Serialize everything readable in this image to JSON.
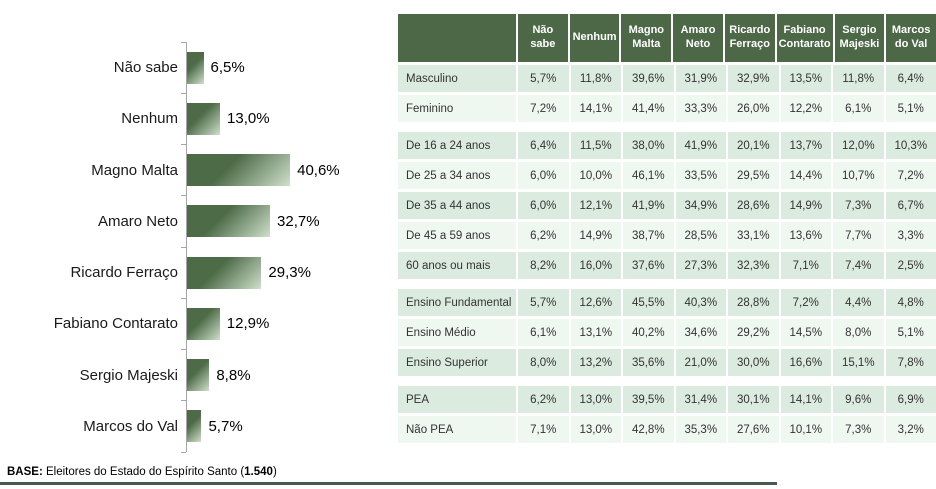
{
  "chart_data": [
    {
      "type": "bar",
      "orientation": "horizontal",
      "title": "",
      "xlabel": "",
      "ylabel": "",
      "grid": false,
      "legend": false,
      "categories": [
        "Não sabe",
        "Nenhum",
        "Magno Malta",
        "Amaro Neto",
        "Ricardo Ferraço",
        "Fabiano Contarato",
        "Sergio Majeski",
        "Marcos do Val"
      ],
      "values": [
        6.5,
        13.0,
        40.6,
        32.7,
        29.3,
        12.9,
        8.8,
        5.7
      ],
      "value_labels": [
        "6,5%",
        "13,0%",
        "40,6%",
        "32,7%",
        "29,3%",
        "12,9%",
        "8,8%",
        "5,7%"
      ],
      "bar_color": "#4d6b47",
      "bar_gradient_end": "#cfe0cc",
      "axis_color": "#a6a6a6"
    },
    {
      "type": "table",
      "header_bg": "#4c6847",
      "row_bg_alt": [
        "#dcebe0",
        "#eff7f1"
      ],
      "columns": [
        "Não sabe",
        "Nenhum",
        "Magno Malta",
        "Amaro Neto",
        "Ricardo Ferraço",
        "Fabiano Contarato",
        "Sergio Majeski",
        "Marcos do Val"
      ],
      "row_groups": [
        {
          "rows": [
            {
              "label": "Masculino",
              "values": [
                "5,7%",
                "11,8%",
                "39,6%",
                "31,9%",
                "32,9%",
                "13,5%",
                "11,8%",
                "6,4%"
              ]
            },
            {
              "label": "Feminino",
              "values": [
                "7,2%",
                "14,1%",
                "41,4%",
                "33,3%",
                "26,0%",
                "12,2%",
                "6,1%",
                "5,1%"
              ]
            }
          ]
        },
        {
          "rows": [
            {
              "label": "De 16 a 24 anos",
              "values": [
                "6,4%",
                "11,5%",
                "38,0%",
                "41,9%",
                "20,1%",
                "13,7%",
                "12,0%",
                "10,3%"
              ]
            },
            {
              "label": "De 25 a 34 anos",
              "values": [
                "6,0%",
                "10,0%",
                "46,1%",
                "33,5%",
                "29,5%",
                "14,4%",
                "10,7%",
                "7,2%"
              ]
            },
            {
              "label": "De 35 a 44 anos",
              "values": [
                "6,0%",
                "12,1%",
                "41,9%",
                "34,9%",
                "28,6%",
                "14,9%",
                "7,3%",
                "6,7%"
              ]
            },
            {
              "label": "De 45 a 59 anos",
              "values": [
                "6,2%",
                "14,9%",
                "38,7%",
                "28,5%",
                "33,1%",
                "13,6%",
                "7,7%",
                "3,3%"
              ]
            },
            {
              "label": "60 anos ou mais",
              "values": [
                "8,2%",
                "16,0%",
                "37,6%",
                "27,3%",
                "32,3%",
                "7,1%",
                "7,4%",
                "2,5%"
              ]
            }
          ]
        },
        {
          "rows": [
            {
              "label": "Ensino Fundamental",
              "values": [
                "5,7%",
                "12,6%",
                "45,5%",
                "40,3%",
                "28,8%",
                "7,2%",
                "4,4%",
                "4,8%"
              ]
            },
            {
              "label": "Ensino Médio",
              "values": [
                "6,1%",
                "13,1%",
                "40,2%",
                "34,6%",
                "29,2%",
                "14,5%",
                "8,0%",
                "5,1%"
              ]
            },
            {
              "label": "Ensino Superior",
              "values": [
                "8,0%",
                "13,2%",
                "35,6%",
                "21,0%",
                "30,0%",
                "16,6%",
                "15,1%",
                "7,8%"
              ]
            }
          ]
        },
        {
          "rows": [
            {
              "label": "PEA",
              "values": [
                "6,2%",
                "13,0%",
                "39,5%",
                "31,4%",
                "30,1%",
                "14,1%",
                "9,6%",
                "6,9%"
              ]
            },
            {
              "label": "Não PEA",
              "values": [
                "7,1%",
                "13,0%",
                "42,8%",
                "35,3%",
                "27,6%",
                "10,1%",
                "7,3%",
                "3,2%"
              ]
            }
          ]
        }
      ]
    }
  ],
  "footer": {
    "base_label": "BASE:",
    "base_text": " Eleitores do Estado do Espírito Santo (",
    "base_value": "1.540",
    "base_suffix": ")"
  }
}
